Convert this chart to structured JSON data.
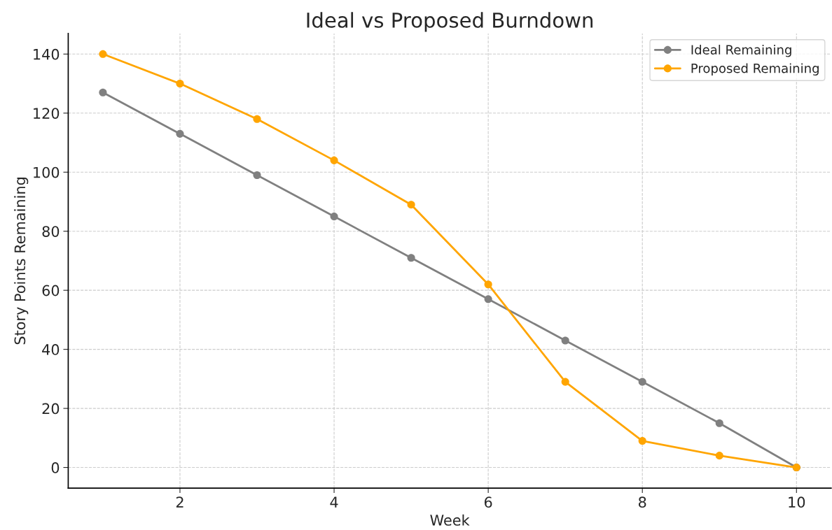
{
  "chart_data": {
    "type": "line",
    "title": "Ideal vs Proposed Burndown",
    "xlabel": "Week",
    "ylabel": "Story Points Remaining",
    "x": [
      1,
      2,
      3,
      4,
      5,
      6,
      7,
      8,
      9,
      10
    ],
    "series": [
      {
        "name": "Ideal Remaining",
        "color": "#808080",
        "values": [
          127,
          113,
          99,
          85,
          71,
          57,
          43,
          29,
          15,
          0
        ]
      },
      {
        "name": "Proposed Remaining",
        "color": "#ffa500",
        "values": [
          140,
          130,
          118,
          104,
          89,
          62,
          29,
          9,
          4,
          0
        ]
      }
    ],
    "xlim": [
      0.55,
      10.45
    ],
    "xticks": [
      2,
      4,
      6,
      8,
      10
    ],
    "ylim": [
      -7,
      147
    ],
    "yticks": [
      0,
      20,
      40,
      60,
      80,
      100,
      120,
      140
    ],
    "grid": true,
    "legend": "top right",
    "marker": "circle",
    "line_style": "solid"
  }
}
